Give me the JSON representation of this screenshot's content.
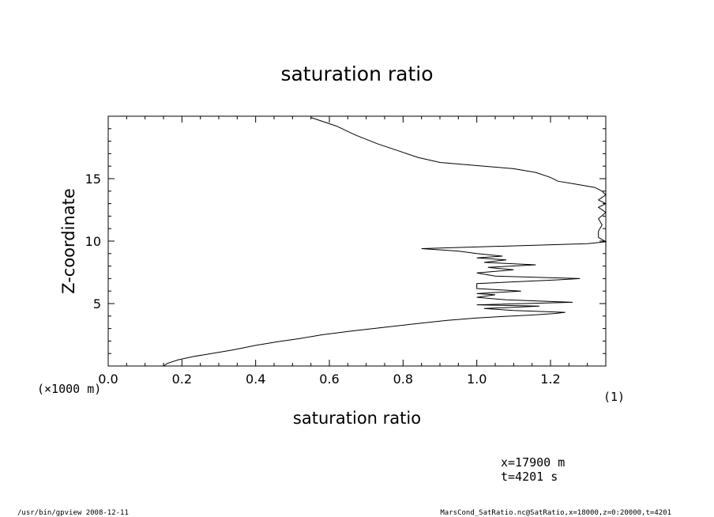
{
  "chart_data": {
    "type": "line",
    "title": "saturation ratio",
    "xlabel": "saturation ratio",
    "xunit": "(1)",
    "ylabel": "Z-coordinate",
    "yunit": "(×1000 m)",
    "xlim": [
      0.0,
      1.35
    ],
    "ylim": [
      0,
      20000
    ],
    "xticks": [
      0.0,
      0.2,
      0.4,
      0.6,
      0.8,
      1.0,
      1.2
    ],
    "xtick_labels": [
      "0.0",
      "0.2",
      "0.4",
      "0.6",
      "0.8",
      "1.0",
      "1.2"
    ],
    "yticks": [
      5000,
      10000,
      15000
    ],
    "ytick_labels": [
      "5",
      "10",
      "15"
    ],
    "grid": false,
    "series": [
      {
        "points": [
          [
            0.15,
            0
          ],
          [
            0.16,
            200
          ],
          [
            0.19,
            500
          ],
          [
            0.23,
            750
          ],
          [
            0.28,
            1000
          ],
          [
            0.34,
            1300
          ],
          [
            0.4,
            1650
          ],
          [
            0.46,
            1950
          ],
          [
            0.52,
            2200
          ],
          [
            0.58,
            2500
          ],
          [
            0.66,
            2800
          ],
          [
            0.75,
            3100
          ],
          [
            0.84,
            3400
          ],
          [
            0.92,
            3650
          ],
          [
            1.0,
            3850
          ],
          [
            1.08,
            3980
          ],
          [
            1.15,
            4080
          ],
          [
            1.21,
            4200
          ],
          [
            1.24,
            4300
          ],
          [
            1.1,
            4450
          ],
          [
            1.02,
            4600
          ],
          [
            1.17,
            4800
          ],
          [
            1.0,
            4900
          ],
          [
            1.26,
            5100
          ],
          [
            1.08,
            5300
          ],
          [
            1.0,
            5500
          ],
          [
            1.05,
            5700
          ],
          [
            1.0,
            5800
          ],
          [
            1.12,
            6000
          ],
          [
            1.0,
            6200
          ],
          [
            1.0,
            6600
          ],
          [
            1.22,
            6900
          ],
          [
            1.28,
            7000
          ],
          [
            1.05,
            7200
          ],
          [
            1.0,
            7450
          ],
          [
            1.1,
            7700
          ],
          [
            1.03,
            7900
          ],
          [
            1.16,
            8100
          ],
          [
            1.02,
            8300
          ],
          [
            1.08,
            8500
          ],
          [
            1.0,
            8650
          ],
          [
            1.07,
            8800
          ],
          [
            1.0,
            9000
          ],
          [
            0.95,
            9200
          ],
          [
            0.85,
            9400
          ],
          [
            1.3,
            9800
          ],
          [
            1.35,
            9950
          ],
          [
            1.33,
            10300
          ],
          [
            1.33,
            10800
          ],
          [
            1.34,
            11300
          ],
          [
            1.33,
            11800
          ],
          [
            1.35,
            12300
          ],
          [
            1.33,
            12700
          ],
          [
            1.35,
            13000
          ],
          [
            1.33,
            13300
          ],
          [
            1.35,
            13700
          ],
          [
            1.34,
            14000
          ],
          [
            1.32,
            14300
          ],
          [
            1.26,
            14600
          ],
          [
            1.22,
            14800
          ],
          [
            1.2,
            15100
          ],
          [
            1.16,
            15500
          ],
          [
            1.1,
            15800
          ],
          [
            1.02,
            16000
          ],
          [
            0.9,
            16300
          ],
          [
            0.84,
            16700
          ],
          [
            0.79,
            17200
          ],
          [
            0.73,
            17800
          ],
          [
            0.67,
            18500
          ],
          [
            0.62,
            19200
          ],
          [
            0.55,
            19900
          ]
        ]
      }
    ]
  },
  "info": {
    "x_position": "x=17900  m",
    "time": "t=4201  s"
  },
  "footer": {
    "left": "/usr/bin/gpview   2008-12-11",
    "right": "MarsCond_SatRatio.nc@SatRatio,x=18000,z=0:20000,t=4201"
  }
}
